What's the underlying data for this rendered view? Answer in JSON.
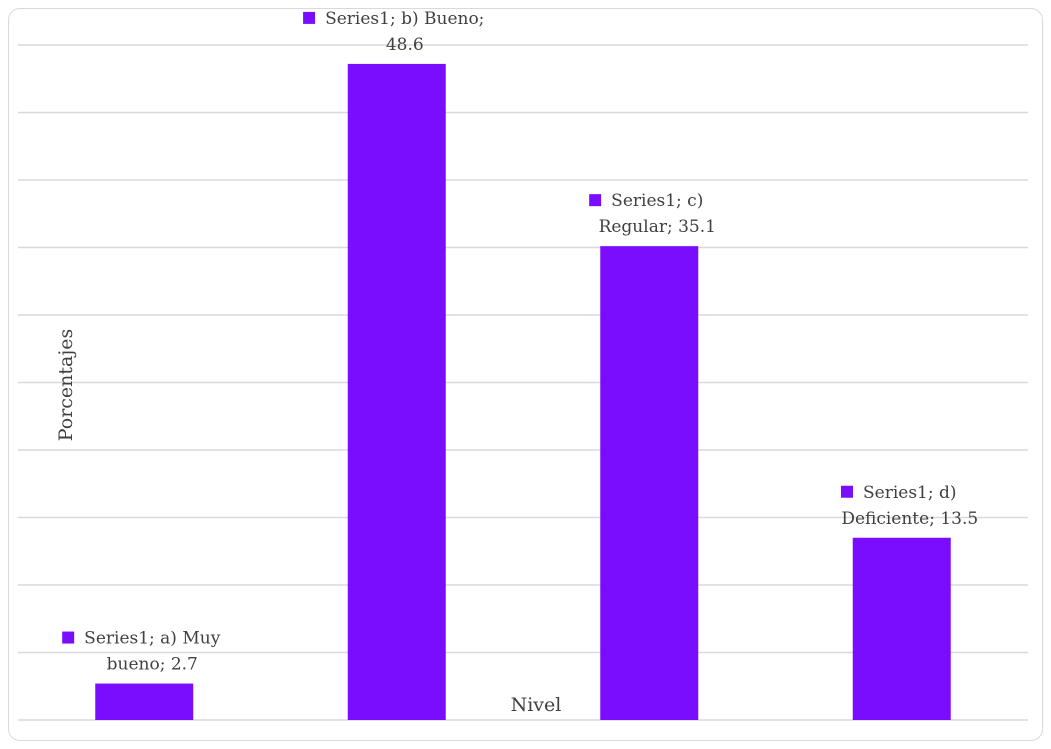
{
  "chart_data": {
    "type": "bar",
    "categories": [
      "a) Muy bueno",
      "b) Bueno",
      "c) Regular",
      "d) Deficiente"
    ],
    "series": [
      {
        "name": "Series1",
        "values": [
          2.7,
          48.6,
          35.1,
          13.5
        ]
      }
    ],
    "data_labels": [
      [
        "Series1; a) Muy",
        "bueno; 2.7"
      ],
      [
        "Series1; b) Bueno;",
        "48.6"
      ],
      [
        "Series1; c)",
        "Regular; 35.1"
      ],
      [
        "Series1; d)",
        "Deficiente; 13.5"
      ]
    ],
    "xlabel": "Nivel",
    "ylabel": "Porcentajes",
    "ylim": [
      0,
      50
    ],
    "grid": true,
    "bar_color": "#7b0dff",
    "legend_key_color": "#7b0dff"
  }
}
